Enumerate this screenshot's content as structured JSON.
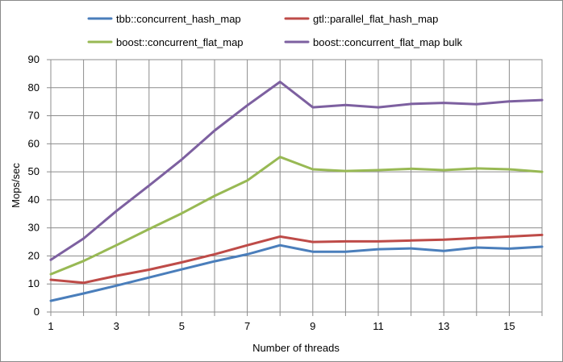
{
  "chart_data": {
    "type": "line",
    "title": "",
    "xlabel": "Number of threads",
    "ylabel": "Mops/sec",
    "xlim": [
      1,
      16
    ],
    "ylim": [
      0,
      90
    ],
    "x_ticks": [
      1,
      3,
      5,
      7,
      9,
      11,
      13,
      15
    ],
    "y_ticks": [
      0,
      10,
      20,
      30,
      40,
      50,
      60,
      70,
      80,
      90
    ],
    "grid": true,
    "legend_position": "top",
    "x": [
      1,
      2,
      3,
      4,
      5,
      6,
      7,
      8,
      9,
      10,
      11,
      12,
      13,
      14,
      15,
      16
    ],
    "series": [
      {
        "name": "tbb::concurrent_hash_map",
        "color": "#4a7ebb",
        "values": [
          4.0,
          6.6,
          9.4,
          12.3,
          15.2,
          18.1,
          20.6,
          23.8,
          21.5,
          21.5,
          22.4,
          22.7,
          21.8,
          23.0,
          22.6,
          23.3
        ]
      },
      {
        "name": "gtl::parallel_flat_hash_map",
        "color": "#be4b48",
        "values": [
          11.5,
          10.4,
          12.9,
          15.1,
          17.7,
          20.6,
          23.8,
          26.9,
          25.0,
          25.2,
          25.2,
          25.5,
          25.8,
          26.4,
          26.9,
          27.5
        ]
      },
      {
        "name": "boost::concurrent_flat_map",
        "color": "#98b954",
        "values": [
          13.5,
          18.2,
          23.8,
          29.6,
          35.2,
          41.4,
          46.9,
          55.3,
          50.9,
          50.3,
          50.6,
          51.1,
          50.6,
          51.2,
          50.9,
          50.0
        ]
      },
      {
        "name": "boost::concurrent_flat_map bulk",
        "color": "#7d60a0",
        "values": [
          18.6,
          26.2,
          36.0,
          45.1,
          54.4,
          64.7,
          73.7,
          82.1,
          73.0,
          73.8,
          73.0,
          74.2,
          74.6,
          74.1,
          75.1,
          75.6
        ]
      }
    ]
  }
}
